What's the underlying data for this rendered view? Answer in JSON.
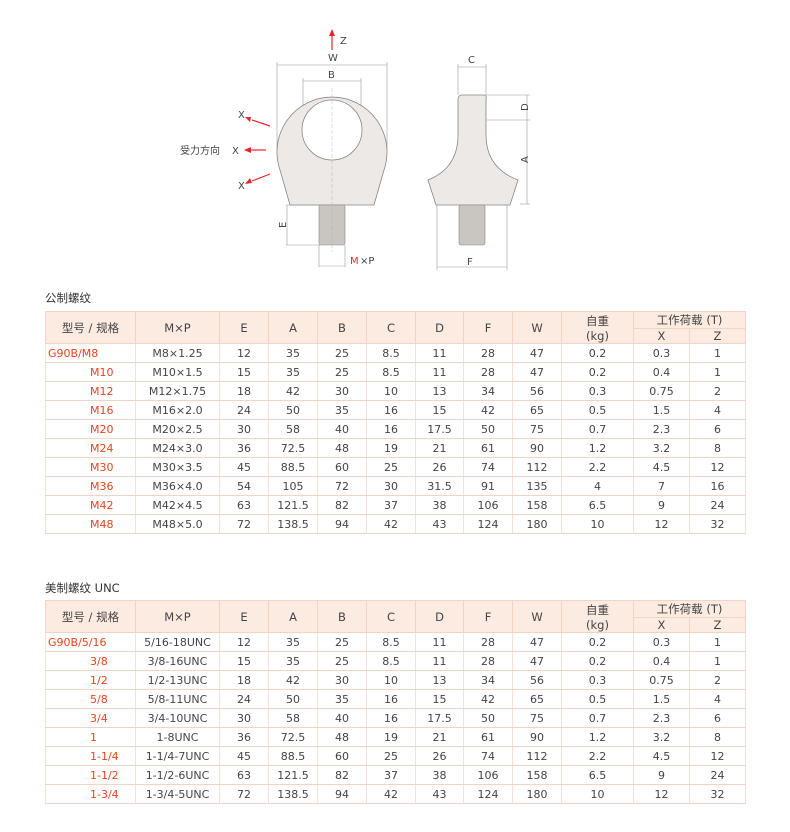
{
  "diagram": {
    "labels": {
      "z": "Z",
      "w": "W",
      "b": "B",
      "c": "C",
      "d": "D",
      "a": "A",
      "e": "E",
      "f": "F",
      "x1": "X",
      "x2": "X",
      "x3": "X",
      "force_direction": "受力方向",
      "m": "M",
      "xp": "×P"
    },
    "colors": {
      "arrow": "#e8262a",
      "body": "#ece9e6",
      "outline": "#8a8680"
    }
  },
  "columns": [
    "型号 / 规格",
    "M×P",
    "E",
    "A",
    "B",
    "C",
    "D",
    "F",
    "W",
    "自重",
    "(kg)",
    "工作荷载 (T)",
    "X",
    "Z"
  ],
  "metric": {
    "title": "公制螺纹",
    "rows": [
      [
        "G90B/M8",
        "M8×1.25",
        "12",
        "35",
        "25",
        "8.5",
        "11",
        "28",
        "47",
        "0.2",
        "0.3",
        "1"
      ],
      [
        "M10",
        "M10×1.5",
        "15",
        "35",
        "25",
        "8.5",
        "11",
        "28",
        "47",
        "0.2",
        "0.4",
        "1"
      ],
      [
        "M12",
        "M12×1.75",
        "18",
        "42",
        "30",
        "10",
        "13",
        "34",
        "56",
        "0.3",
        "0.75",
        "2"
      ],
      [
        "M16",
        "M16×2.0",
        "24",
        "50",
        "35",
        "16",
        "15",
        "42",
        "65",
        "0.5",
        "1.5",
        "4"
      ],
      [
        "M20",
        "M20×2.5",
        "30",
        "58",
        "40",
        "16",
        "17.5",
        "50",
        "75",
        "0.7",
        "2.3",
        "6"
      ],
      [
        "M24",
        "M24×3.0",
        "36",
        "72.5",
        "48",
        "19",
        "21",
        "61",
        "90",
        "1.2",
        "3.2",
        "8"
      ],
      [
        "M30",
        "M30×3.5",
        "45",
        "88.5",
        "60",
        "25",
        "26",
        "74",
        "112",
        "2.2",
        "4.5",
        "12"
      ],
      [
        "M36",
        "M36×4.0",
        "54",
        "105",
        "72",
        "30",
        "31.5",
        "91",
        "135",
        "4",
        "7",
        "16"
      ],
      [
        "M42",
        "M42×4.5",
        "63",
        "121.5",
        "82",
        "37",
        "38",
        "106",
        "158",
        "6.5",
        "9",
        "24"
      ],
      [
        "M48",
        "M48×5.0",
        "72",
        "138.5",
        "94",
        "42",
        "43",
        "124",
        "180",
        "10",
        "12",
        "32"
      ]
    ]
  },
  "unc": {
    "title": "美制螺纹 UNC",
    "rows": [
      [
        "G90B/5/16",
        "5/16-18UNC",
        "12",
        "35",
        "25",
        "8.5",
        "11",
        "28",
        "47",
        "0.2",
        "0.3",
        "1"
      ],
      [
        "3/8",
        "3/8-16UNC",
        "15",
        "35",
        "25",
        "8.5",
        "11",
        "28",
        "47",
        "0.2",
        "0.4",
        "1"
      ],
      [
        "1/2",
        "1/2-13UNC",
        "18",
        "42",
        "30",
        "10",
        "13",
        "34",
        "56",
        "0.3",
        "0.75",
        "2"
      ],
      [
        "5/8",
        "5/8-11UNC",
        "24",
        "50",
        "35",
        "16",
        "15",
        "42",
        "65",
        "0.5",
        "1.5",
        "4"
      ],
      [
        "3/4",
        "3/4-10UNC",
        "30",
        "58",
        "40",
        "16",
        "17.5",
        "50",
        "75",
        "0.7",
        "2.3",
        "6"
      ],
      [
        "1",
        "1-8UNC",
        "36",
        "72.5",
        "48",
        "19",
        "21",
        "61",
        "90",
        "1.2",
        "3.2",
        "8"
      ],
      [
        "1-1/4",
        "1-1/4-7UNC",
        "45",
        "88.5",
        "60",
        "25",
        "26",
        "74",
        "112",
        "2.2",
        "4.5",
        "12"
      ],
      [
        "1-1/2",
        "1-1/2-6UNC",
        "63",
        "121.5",
        "82",
        "37",
        "38",
        "106",
        "158",
        "6.5",
        "9",
        "24"
      ],
      [
        "1-3/4",
        "1-3/4-5UNC",
        "72",
        "138.5",
        "94",
        "42",
        "43",
        "124",
        "180",
        "10",
        "12",
        "32"
      ]
    ]
  },
  "colors": {
    "model": "#e8431e",
    "header_bg": "#fcebe1",
    "border": "#f3d3c3"
  }
}
